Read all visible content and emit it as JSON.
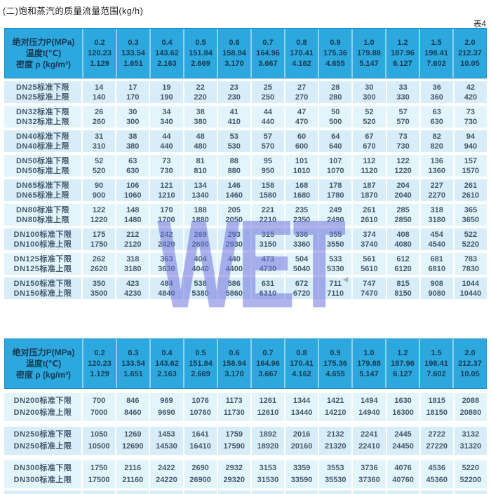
{
  "page": {
    "title": "(二)饱和蒸汽的质量流量范围(kg/h)",
    "table_tag": "表4"
  },
  "watermark": {
    "text": "WET"
  },
  "cursor_icon": "◄",
  "header": {
    "label_lines": [
      "绝对压力P(MPa)",
      "温度t(℃)",
      "密度 ρ (kg/m³)"
    ],
    "columns": [
      {
        "p": "0.2",
        "t": "120.23",
        "rho": "1.129"
      },
      {
        "p": "0.3",
        "t": "133.54",
        "rho": "1.651"
      },
      {
        "p": "0.4",
        "t": "143.62",
        "rho": "2.163"
      },
      {
        "p": "0.5",
        "t": "151.84",
        "rho": "2.669"
      },
      {
        "p": "0.6",
        "t": "158.94",
        "rho": "3.170"
      },
      {
        "p": "0.7",
        "t": "164.96",
        "rho": "3.667"
      },
      {
        "p": "0.8",
        "t": "170.41",
        "rho": "4.162"
      },
      {
        "p": "0.9",
        "t": "175.36",
        "rho": "4.655"
      },
      {
        "p": "1.0",
        "t": "179.88",
        "rho": "5.147"
      },
      {
        "p": "1.2",
        "t": "187.96",
        "rho": "6.127"
      },
      {
        "p": "1.5",
        "t": "198.41",
        "rho": "7.602"
      },
      {
        "p": "2.0",
        "t": "212.37",
        "rho": "10.05"
      }
    ]
  },
  "table1": {
    "rows": [
      {
        "label_lower": "DN25标准下限",
        "label_upper": "DN25标准上限",
        "lower": [
          "14",
          "17",
          "19",
          "22",
          "23",
          "25",
          "27",
          "28",
          "30",
          "33",
          "36",
          "42"
        ],
        "upper": [
          "140",
          "170",
          "190",
          "220",
          "230",
          "250",
          "270",
          "280",
          "300",
          "330",
          "360",
          "420"
        ]
      },
      {
        "label_lower": "DN32标准下限",
        "label_upper": "DN32标准上限",
        "lower": [
          "26",
          "30",
          "34",
          "38",
          "41",
          "44",
          "47",
          "50",
          "52",
          "57",
          "63",
          "73"
        ],
        "upper": [
          "260",
          "300",
          "340",
          "380",
          "410",
          "440",
          "470",
          "500",
          "520",
          "570",
          "630",
          "730"
        ]
      },
      {
        "label_lower": "DN40标准下限",
        "label_upper": "DN40标准上限",
        "lower": [
          "31",
          "38",
          "44",
          "48",
          "53",
          "57",
          "60",
          "64",
          "67",
          "73",
          "82",
          "94"
        ],
        "upper": [
          "310",
          "380",
          "440",
          "480",
          "530",
          "570",
          "600",
          "640",
          "670",
          "730",
          "820",
          "940"
        ]
      },
      {
        "label_lower": "DN50标准下限",
        "label_upper": "DN50标准上限",
        "lower": [
          "52",
          "63",
          "73",
          "81",
          "88",
          "95",
          "101",
          "107",
          "112",
          "122",
          "136",
          "157"
        ],
        "upper": [
          "520",
          "630",
          "730",
          "810",
          "880",
          "950",
          "1010",
          "1070",
          "1120",
          "1220",
          "1360",
          "1570"
        ]
      },
      {
        "label_lower": "DN65标准下限",
        "label_upper": "DN65标准上限",
        "lower": [
          "90",
          "106",
          "121",
          "134",
          "146",
          "158",
          "168",
          "178",
          "187",
          "204",
          "227",
          "261"
        ],
        "upper": [
          "900",
          "1060",
          "1210",
          "1340",
          "1460",
          "1580",
          "1680",
          "1780",
          "1870",
          "2040",
          "2270",
          "2610"
        ]
      },
      {
        "label_lower": "DN80标准下限",
        "label_upper": "DN80标准上限",
        "lower": [
          "122",
          "148",
          "170",
          "188",
          "205",
          "221",
          "235",
          "249",
          "261",
          "285",
          "318",
          "365"
        ],
        "upper": [
          "1220",
          "1480",
          "1700",
          "1880",
          "2050",
          "2210",
          "2350",
          "2490",
          "2610",
          "2850",
          "3180",
          "3650"
        ]
      },
      {
        "label_lower": "DN100标准下限",
        "label_upper": "DN100标准上限",
        "lower": [
          "175",
          "212",
          "242",
          "269",
          "293",
          "315",
          "336",
          "355",
          "374",
          "408",
          "454",
          "522"
        ],
        "upper": [
          "1750",
          "2120",
          "2420",
          "2690",
          "2930",
          "3150",
          "3360",
          "3550",
          "3740",
          "4080",
          "4540",
          "5220"
        ]
      },
      {
        "label_lower": "DN125标准下限",
        "label_upper": "DN125标准上限",
        "lower": [
          "262",
          "318",
          "363",
          "404",
          "440",
          "473",
          "504",
          "533",
          "561",
          "612",
          "681",
          "783"
        ],
        "upper": [
          "2620",
          "3180",
          "3630",
          "4040",
          "4400",
          "4730",
          "5040",
          "5330",
          "5610",
          "6120",
          "6810",
          "7830"
        ]
      },
      {
        "label_lower": "DN150标准下限",
        "label_upper": "DN150标准上限",
        "lower": [
          "350",
          "423",
          "484",
          "538",
          "586",
          "631",
          "672",
          "711",
          "747",
          "815",
          "908",
          "1044"
        ],
        "upper": [
          "3500",
          "4230",
          "4840",
          "5380",
          "5860",
          "6310",
          "6720",
          "7110",
          "7470",
          "8150",
          "9080",
          "10440"
        ]
      }
    ]
  },
  "table2": {
    "rows": [
      {
        "label_lower": "DN200标准下限",
        "label_upper": "DN200标准上限",
        "lower": [
          "700",
          "846",
          "969",
          "1076",
          "1173",
          "1261",
          "1344",
          "1421",
          "1494",
          "1630",
          "1815",
          "2088"
        ],
        "upper": [
          "7000",
          "8460",
          "9690",
          "10760",
          "11730",
          "12610",
          "13440",
          "14210",
          "14940",
          "16300",
          "18150",
          "20880"
        ]
      },
      {
        "label_lower": "DN250标准下限",
        "label_upper": "DN250标准上限",
        "lower": [
          "1050",
          "1269",
          "1453",
          "1641",
          "1759",
          "1892",
          "2016",
          "2132",
          "2241",
          "2445",
          "2722",
          "3132"
        ],
        "upper": [
          "10500",
          "12690",
          "14530",
          "16410",
          "17590",
          "18920",
          "20160",
          "21320",
          "22410",
          "24450",
          "27220",
          "31320"
        ]
      },
      {
        "label_lower": "DN300标准下限",
        "label_upper": "DN300标准上限",
        "lower": [
          "1750",
          "2116",
          "2422",
          "2690",
          "2932",
          "3153",
          "3359",
          "3553",
          "3736",
          "4076",
          "4536",
          "5220"
        ],
        "upper": [
          "17500",
          "21160",
          "24220",
          "26900",
          "29320",
          "31530",
          "33590",
          "35530",
          "37360",
          "40760",
          "45360",
          "52200"
        ]
      }
    ]
  }
}
